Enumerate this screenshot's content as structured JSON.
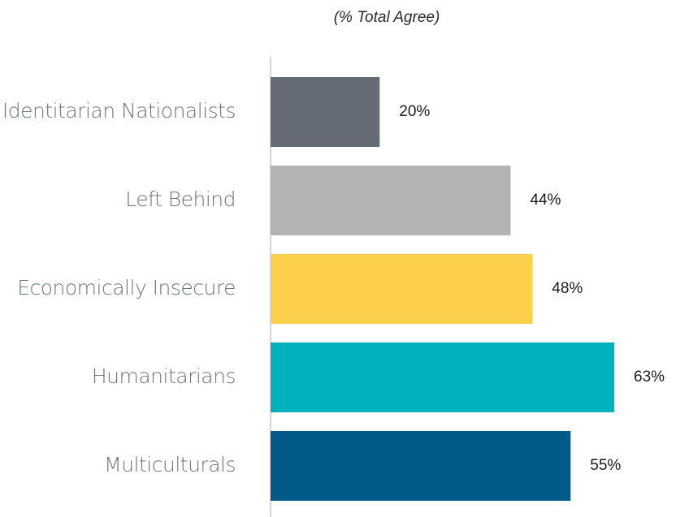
{
  "chart_data": {
    "type": "bar",
    "orientation": "horizontal",
    "subtitle": "(% Total Agree)",
    "categories": [
      "Identitarian Nationalists",
      "Left Behind",
      "Economically Insecure",
      "Humanitarians",
      "Multiculturals"
    ],
    "values": [
      20,
      44,
      48,
      63,
      55
    ],
    "value_labels": [
      "20%",
      "44%",
      "48%",
      "63%",
      "55%"
    ],
    "colors": [
      "#666c75",
      "#b3b3b3",
      "#fdd04c",
      "#00b1be",
      "#015a87"
    ]
  }
}
